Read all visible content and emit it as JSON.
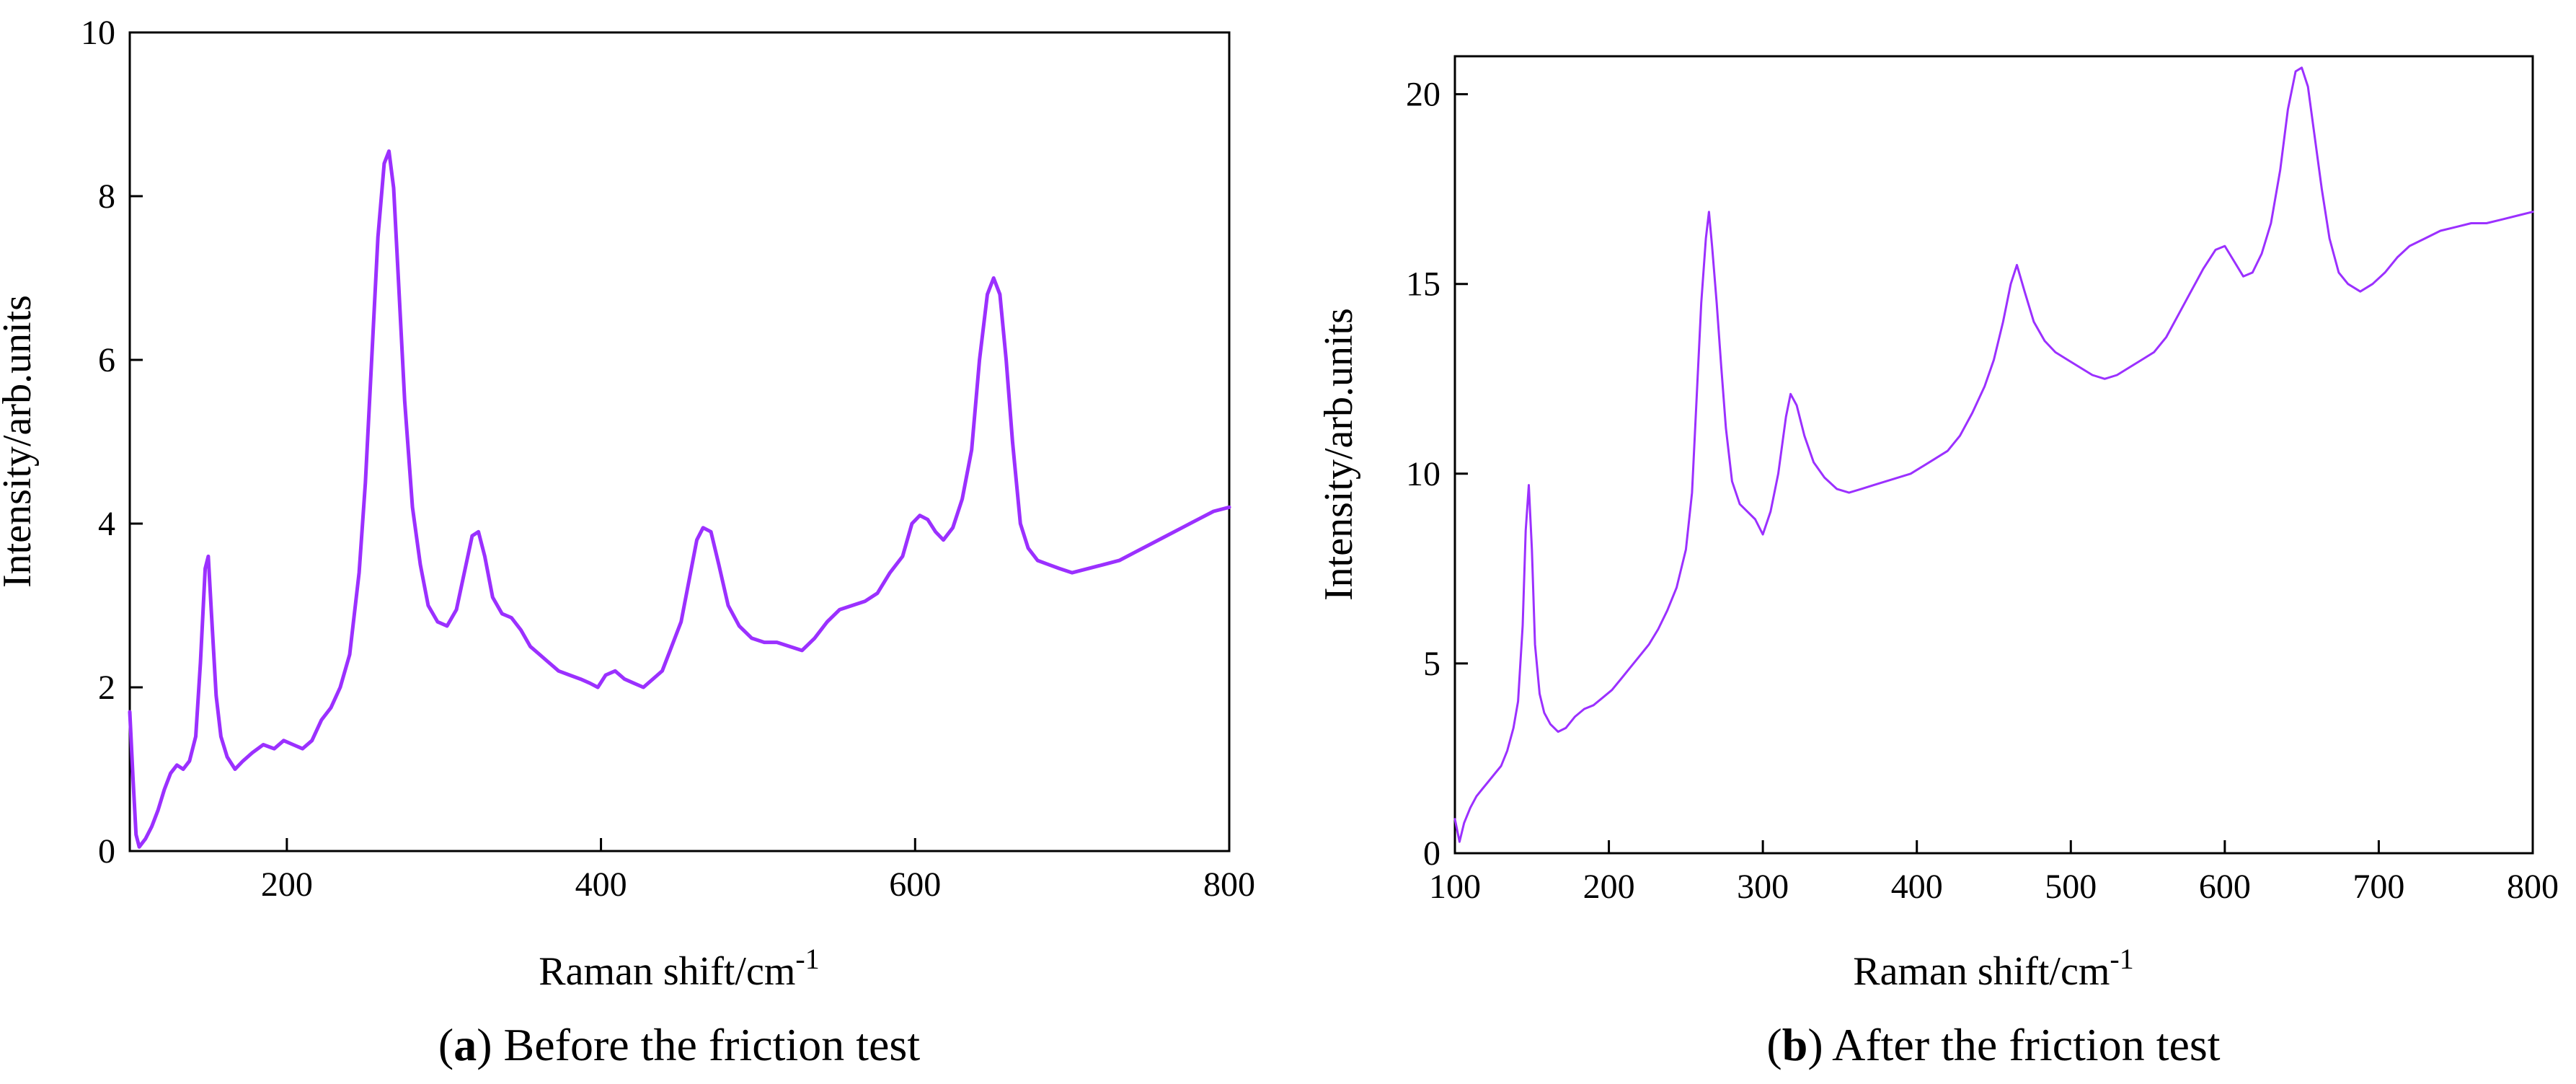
{
  "chart_data": [
    {
      "type": "line",
      "caption_letter": "a",
      "caption_text": ") Before the friction test",
      "caption_open": "(",
      "xlabel": "Raman shift/cm",
      "xlabel_sup": "-1",
      "ylabel": "Intensity/arb.units",
      "xlim": [
        100,
        800
      ],
      "ylim": [
        0,
        10
      ],
      "xticks": [
        200,
        400,
        600,
        800
      ],
      "xtick_labels": [
        "200",
        "400",
        "600",
        "800"
      ],
      "yticks": [
        0,
        2,
        4,
        6,
        8,
        10
      ],
      "ytick_labels": [
        "0",
        "2",
        "4",
        "6",
        "8",
        "10"
      ],
      "color": "#9B30FF",
      "series": [
        {
          "name": "Before the friction test",
          "points": [
            [
              100,
              1.7
            ],
            [
              102,
              0.9
            ],
            [
              104,
              0.2
            ],
            [
              106,
              0.05
            ],
            [
              110,
              0.15
            ],
            [
              114,
              0.3
            ],
            [
              118,
              0.5
            ],
            [
              122,
              0.75
            ],
            [
              126,
              0.95
            ],
            [
              130,
              1.05
            ],
            [
              134,
              1.0
            ],
            [
              138,
              1.1
            ],
            [
              142,
              1.4
            ],
            [
              145,
              2.3
            ],
            [
              148,
              3.45
            ],
            [
              150,
              3.6
            ],
            [
              152,
              2.9
            ],
            [
              155,
              1.9
            ],
            [
              158,
              1.4
            ],
            [
              162,
              1.15
            ],
            [
              167,
              1.0
            ],
            [
              172,
              1.1
            ],
            [
              178,
              1.2
            ],
            [
              185,
              1.3
            ],
            [
              192,
              1.25
            ],
            [
              198,
              1.35
            ],
            [
              204,
              1.3
            ],
            [
              210,
              1.25
            ],
            [
              216,
              1.35
            ],
            [
              222,
              1.6
            ],
            [
              228,
              1.75
            ],
            [
              234,
              2.0
            ],
            [
              240,
              2.4
            ],
            [
              246,
              3.4
            ],
            [
              250,
              4.5
            ],
            [
              254,
              6.0
            ],
            [
              258,
              7.5
            ],
            [
              262,
              8.4
            ],
            [
              265,
              8.55
            ],
            [
              268,
              8.1
            ],
            [
              271,
              7.0
            ],
            [
              275,
              5.5
            ],
            [
              280,
              4.2
            ],
            [
              285,
              3.5
            ],
            [
              290,
              3.0
            ],
            [
              296,
              2.8
            ],
            [
              302,
              2.75
            ],
            [
              308,
              2.95
            ],
            [
              313,
              3.4
            ],
            [
              318,
              3.85
            ],
            [
              322,
              3.9
            ],
            [
              326,
              3.6
            ],
            [
              331,
              3.1
            ],
            [
              337,
              2.9
            ],
            [
              343,
              2.85
            ],
            [
              349,
              2.7
            ],
            [
              355,
              2.5
            ],
            [
              361,
              2.4
            ],
            [
              367,
              2.3
            ],
            [
              373,
              2.2
            ],
            [
              380,
              2.15
            ],
            [
              387,
              2.1
            ],
            [
              393,
              2.05
            ],
            [
              398,
              2.0
            ],
            [
              403,
              2.15
            ],
            [
              409,
              2.2
            ],
            [
              415,
              2.1
            ],
            [
              421,
              2.05
            ],
            [
              427,
              2.0
            ],
            [
              433,
              2.1
            ],
            [
              439,
              2.2
            ],
            [
              445,
              2.5
            ],
            [
              451,
              2.8
            ],
            [
              456,
              3.3
            ],
            [
              461,
              3.8
            ],
            [
              465,
              3.95
            ],
            [
              470,
              3.9
            ],
            [
              475,
              3.5
            ],
            [
              481,
              3.0
            ],
            [
              488,
              2.75
            ],
            [
              496,
              2.6
            ],
            [
              504,
              2.55
            ],
            [
              512,
              2.55
            ],
            [
              520,
              2.5
            ],
            [
              528,
              2.45
            ],
            [
              536,
              2.6
            ],
            [
              544,
              2.8
            ],
            [
              552,
              2.95
            ],
            [
              560,
              3.0
            ],
            [
              568,
              3.05
            ],
            [
              576,
              3.15
            ],
            [
              584,
              3.4
            ],
            [
              592,
              3.6
            ],
            [
              598,
              4.0
            ],
            [
              603,
              4.1
            ],
            [
              608,
              4.05
            ],
            [
              613,
              3.9
            ],
            [
              618,
              3.8
            ],
            [
              624,
              3.95
            ],
            [
              630,
              4.3
            ],
            [
              636,
              4.9
            ],
            [
              641,
              6.0
            ],
            [
              646,
              6.8
            ],
            [
              650,
              7.0
            ],
            [
              654,
              6.8
            ],
            [
              658,
              6.0
            ],
            [
              662,
              5.0
            ],
            [
              667,
              4.0
            ],
            [
              672,
              3.7
            ],
            [
              678,
              3.55
            ],
            [
              685,
              3.5
            ],
            [
              692,
              3.45
            ],
            [
              700,
              3.4
            ],
            [
              710,
              3.45
            ],
            [
              720,
              3.5
            ],
            [
              730,
              3.55
            ],
            [
              740,
              3.65
            ],
            [
              750,
              3.75
            ],
            [
              760,
              3.85
            ],
            [
              770,
              3.95
            ],
            [
              780,
              4.05
            ],
            [
              790,
              4.15
            ],
            [
              800,
              4.2
            ]
          ]
        }
      ]
    },
    {
      "type": "line",
      "caption_letter": "b",
      "caption_text": ") After the friction test",
      "caption_open": "(",
      "xlabel": "Raman shift/cm",
      "xlabel_sup": "-1",
      "ylabel": "Intensity/arb.units",
      "xlim": [
        100,
        800
      ],
      "ylim": [
        0,
        21
      ],
      "xticks": [
        100,
        200,
        300,
        400,
        500,
        600,
        700,
        800
      ],
      "xtick_labels": [
        "100",
        "200",
        "300",
        "400",
        "500",
        "600",
        "700",
        "800"
      ],
      "yticks": [
        0,
        5,
        10,
        15,
        20
      ],
      "ytick_labels": [
        "0",
        "5",
        "10",
        "15",
        "20"
      ],
      "color": "#9B30FF",
      "series": [
        {
          "name": "After the friction test",
          "points": [
            [
              100,
              0.9
            ],
            [
              103,
              0.3
            ],
            [
              106,
              0.8
            ],
            [
              110,
              1.2
            ],
            [
              114,
              1.5
            ],
            [
              118,
              1.7
            ],
            [
              122,
              1.9
            ],
            [
              126,
              2.1
            ],
            [
              130,
              2.3
            ],
            [
              134,
              2.7
            ],
            [
              138,
              3.3
            ],
            [
              141,
              4.0
            ],
            [
              144,
              6.0
            ],
            [
              146,
              8.5
            ],
            [
              148,
              9.7
            ],
            [
              150,
              8.0
            ],
            [
              152,
              5.5
            ],
            [
              155,
              4.2
            ],
            [
              158,
              3.7
            ],
            [
              162,
              3.4
            ],
            [
              167,
              3.2
            ],
            [
              172,
              3.3
            ],
            [
              178,
              3.6
            ],
            [
              184,
              3.8
            ],
            [
              190,
              3.9
            ],
            [
              196,
              4.1
            ],
            [
              202,
              4.3
            ],
            [
              208,
              4.6
            ],
            [
              214,
              4.9
            ],
            [
              220,
              5.2
            ],
            [
              226,
              5.5
            ],
            [
              232,
              5.9
            ],
            [
              238,
              6.4
            ],
            [
              244,
              7.0
            ],
            [
              250,
              8.0
            ],
            [
              254,
              9.5
            ],
            [
              257,
              12.0
            ],
            [
              260,
              14.5
            ],
            [
              263,
              16.2
            ],
            [
              265,
              16.9
            ],
            [
              267,
              16.0
            ],
            [
              270,
              14.5
            ],
            [
              273,
              12.8
            ],
            [
              276,
              11.2
            ],
            [
              280,
              9.8
            ],
            [
              285,
              9.2
            ],
            [
              290,
              9.0
            ],
            [
              295,
              8.8
            ],
            [
              300,
              8.4
            ],
            [
              305,
              9.0
            ],
            [
              310,
              10.0
            ],
            [
              315,
              11.5
            ],
            [
              318,
              12.1
            ],
            [
              322,
              11.8
            ],
            [
              327,
              11.0
            ],
            [
              333,
              10.3
            ],
            [
              340,
              9.9
            ],
            [
              348,
              9.6
            ],
            [
              356,
              9.5
            ],
            [
              364,
              9.6
            ],
            [
              372,
              9.7
            ],
            [
              380,
              9.8
            ],
            [
              388,
              9.9
            ],
            [
              396,
              10.0
            ],
            [
              404,
              10.2
            ],
            [
              412,
              10.4
            ],
            [
              420,
              10.6
            ],
            [
              428,
              11.0
            ],
            [
              436,
              11.6
            ],
            [
              444,
              12.3
            ],
            [
              450,
              13.0
            ],
            [
              456,
              14.0
            ],
            [
              461,
              15.0
            ],
            [
              465,
              15.5
            ],
            [
              470,
              14.8
            ],
            [
              476,
              14.0
            ],
            [
              483,
              13.5
            ],
            [
              490,
              13.2
            ],
            [
              498,
              13.0
            ],
            [
              506,
              12.8
            ],
            [
              514,
              12.6
            ],
            [
              522,
              12.5
            ],
            [
              530,
              12.6
            ],
            [
              538,
              12.8
            ],
            [
              546,
              13.0
            ],
            [
              554,
              13.2
            ],
            [
              562,
              13.6
            ],
            [
              570,
              14.2
            ],
            [
              578,
              14.8
            ],
            [
              586,
              15.4
            ],
            [
              594,
              15.9
            ],
            [
              600,
              16.0
            ],
            [
              606,
              15.6
            ],
            [
              612,
              15.2
            ],
            [
              618,
              15.3
            ],
            [
              624,
              15.8
            ],
            [
              630,
              16.6
            ],
            [
              636,
              18.0
            ],
            [
              641,
              19.6
            ],
            [
              646,
              20.6
            ],
            [
              650,
              20.7
            ],
            [
              654,
              20.2
            ],
            [
              658,
              19.0
            ],
            [
              663,
              17.5
            ],
            [
              668,
              16.2
            ],
            [
              674,
              15.3
            ],
            [
              680,
              15.0
            ],
            [
              688,
              14.8
            ],
            [
              696,
              15.0
            ],
            [
              704,
              15.3
            ],
            [
              712,
              15.7
            ],
            [
              720,
              16.0
            ],
            [
              730,
              16.2
            ],
            [
              740,
              16.4
            ],
            [
              750,
              16.5
            ],
            [
              760,
              16.6
            ],
            [
              770,
              16.6
            ],
            [
              780,
              16.7
            ],
            [
              790,
              16.8
            ],
            [
              800,
              16.9
            ]
          ]
        }
      ]
    }
  ]
}
